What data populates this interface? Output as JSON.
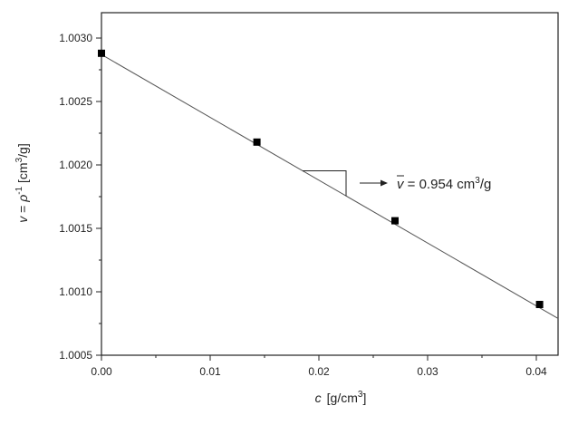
{
  "chart_data": {
    "type": "scatter",
    "xlabel": {
      "symbol": "c",
      "unit_pre": "[g/cm",
      "unit_sup": "3",
      "unit_post": "]"
    },
    "ylabel": {
      "symbol": "v",
      "mid": " = ",
      "rho": "ρ",
      "rho_sup": "-1",
      "unit_pre": " [cm",
      "unit_sup": "3",
      "unit_post": "/g]"
    },
    "xlim": [
      0.0,
      0.042
    ],
    "ylim": [
      1.0005,
      1.0032
    ],
    "x_ticks": [
      0.0,
      0.01,
      0.02,
      0.03,
      0.04
    ],
    "x_tick_labels": [
      "0.00",
      "0.01",
      "0.02",
      "0.03",
      "0.04"
    ],
    "y_ticks": [
      1.0005,
      1.001,
      1.0015,
      1.002,
      1.0025,
      1.003
    ],
    "y_tick_labels": [
      "1.0005",
      "1.0010",
      "1.0015",
      "1.0020",
      "1.0025",
      "1.0030"
    ],
    "points": [
      {
        "x": 0.0,
        "y": 1.00288
      },
      {
        "x": 0.0143,
        "y": 1.00218
      },
      {
        "x": 0.027,
        "y": 1.00156
      },
      {
        "x": 0.0403,
        "y": 1.0009
      }
    ],
    "fit_line": {
      "x": [
        0.0,
        0.042
      ],
      "y": [
        1.00287,
        1.00079
      ]
    },
    "slope_triangle": {
      "x1": 0.0185,
      "x2": 0.0225
    },
    "annotation": {
      "symbol": "v",
      "mid": " = 0.954 cm",
      "sup": "3",
      "post": "/g"
    },
    "grid": false,
    "legend": "none"
  }
}
